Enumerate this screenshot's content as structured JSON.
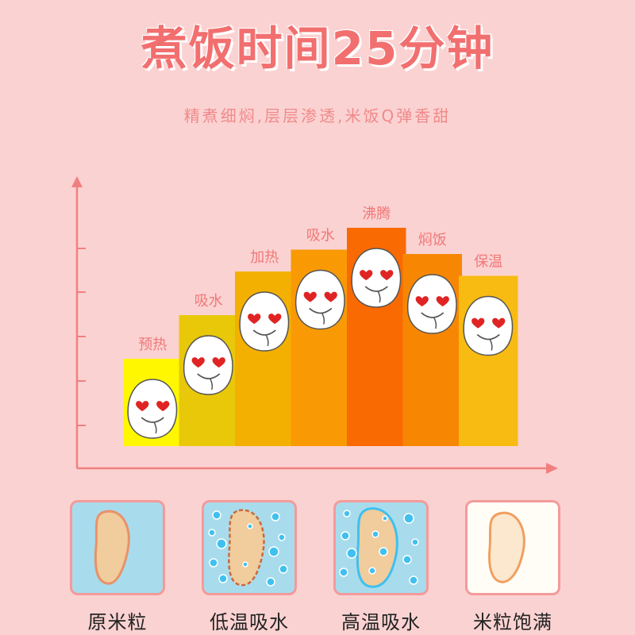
{
  "title": "煮饭时间25分钟",
  "subtitle": "精煮细焖,层层渗透,米饭Q弹香甜",
  "chart_data": {
    "type": "bar",
    "categories": [
      "预热",
      "吸水",
      "加热",
      "吸水",
      "沸腾",
      "焖饭",
      "保温"
    ],
    "values": [
      2,
      3,
      4,
      4.5,
      5,
      4.4,
      3.9
    ],
    "ylim": [
      0,
      6
    ],
    "colors": [
      "#fff700",
      "#e9c80a",
      "#f4b000",
      "#f99a05",
      "#f96a02",
      "#f78703",
      "#f8bb12"
    ],
    "grid": false,
    "legend": "none"
  },
  "stages": [
    {
      "label": "原米粒",
      "state": "raw"
    },
    {
      "label": "低温吸水",
      "state": "low-temp-absorb"
    },
    {
      "label": "高温吸水",
      "state": "high-temp-absorb"
    },
    {
      "label": "米粒饱满",
      "state": "full"
    }
  ],
  "colors": {
    "background": "#fbd2d2",
    "title": "#f26f6f",
    "axis": "#f08080",
    "stage_bg": "#a8dcec",
    "stage_border": "#f49a9a"
  }
}
